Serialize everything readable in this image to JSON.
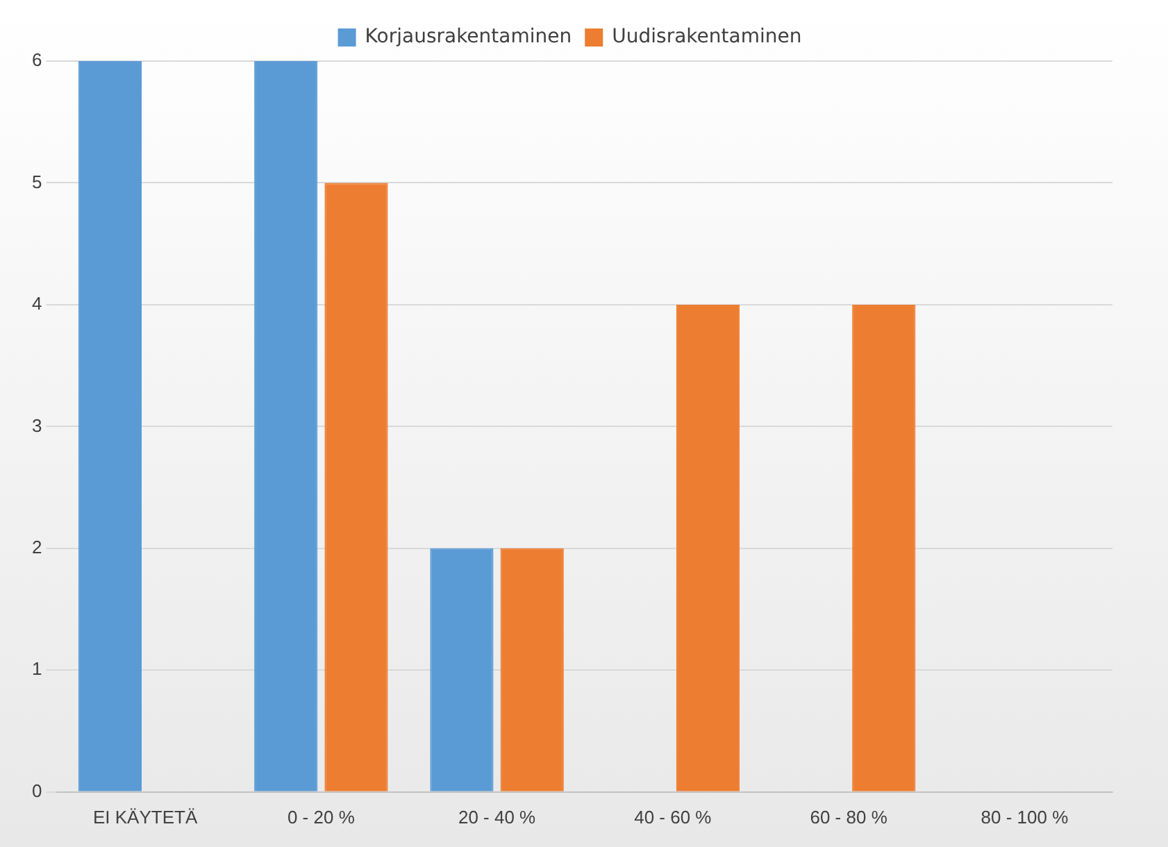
{
  "chart_data": {
    "type": "bar",
    "categories": [
      "EI KÄYTETÄ",
      "0 - 20 %",
      "20 - 40 %",
      "40 - 60 %",
      "60 - 80 %",
      "80 - 100 %"
    ],
    "series": [
      {
        "name": "Korjausrakentaminen",
        "color": "#5b9bd5",
        "values": [
          6,
          6,
          2,
          0,
          0,
          0
        ]
      },
      {
        "name": "Uudisrakentaminen",
        "color": "#ed7d31",
        "values": [
          0,
          5,
          2,
          4,
          4,
          0
        ]
      }
    ],
    "ylim": [
      0,
      6
    ],
    "yticks": [
      0,
      1,
      2,
      3,
      4,
      5,
      6
    ],
    "grid": "y",
    "legend": "top"
  }
}
